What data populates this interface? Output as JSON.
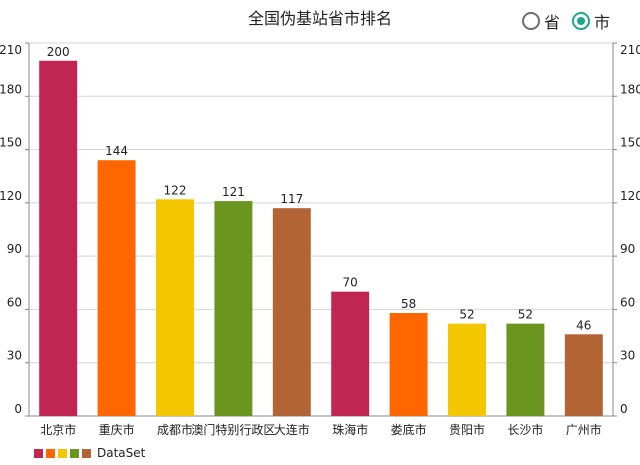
{
  "header": {
    "title": "全国伪基站省市排名",
    "options": [
      {
        "label": "省",
        "selected": false
      },
      {
        "label": "市",
        "selected": true
      }
    ],
    "accent_color": "#1aa58d"
  },
  "chart_data": {
    "type": "bar",
    "title": "全国伪基站省市排名",
    "categories": [
      "北京市",
      "重庆市",
      "成都市",
      "澳门特别行政区",
      "大连市",
      "珠海市",
      "娄底市",
      "贵阳市",
      "长沙市",
      "广州市"
    ],
    "series": [
      {
        "name": "DataSet",
        "values": [
          200,
          144,
          122,
          121,
          117,
          70,
          58,
          52,
          52,
          46
        ],
        "colors": [
          "#c12552",
          "#ff6600",
          "#f4c600",
          "#6a961f",
          "#b36435"
        ]
      }
    ],
    "ylim": [
      0,
      210
    ],
    "yticks": [
      0,
      30,
      60,
      90,
      120,
      150,
      180,
      210
    ],
    "y_axis_both_sides": true,
    "grid": true,
    "legend": "bottom-left",
    "data_labels": true
  }
}
